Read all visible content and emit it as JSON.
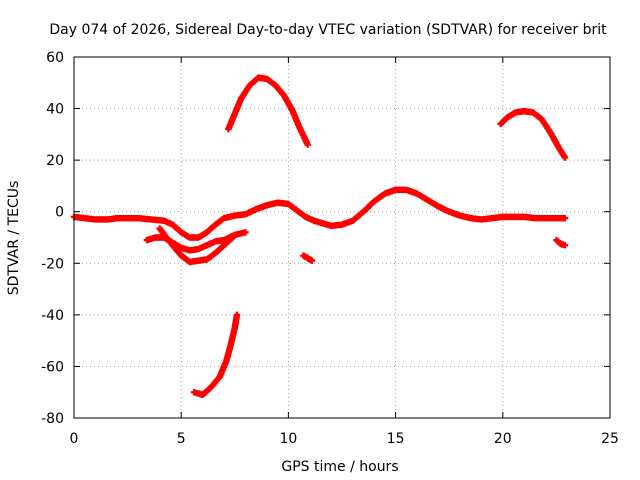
{
  "chart_data": {
    "type": "scatter",
    "title": "Day 074 of 2026, Sidereal Day-to-day VTEC variation (SDTVAR) for receiver brit",
    "xlabel": "GPS time / hours",
    "ylabel": "SDTVAR / TECUs",
    "xlim": [
      0,
      25
    ],
    "ylim": [
      -80,
      60
    ],
    "xticks": [
      0,
      5,
      10,
      15,
      20,
      25
    ],
    "yticks": [
      -80,
      -60,
      -40,
      -20,
      0,
      20,
      40,
      60
    ],
    "xtick_labels": [
      "0",
      "5",
      "10",
      "15",
      "20",
      "25"
    ],
    "ytick_labels": [
      "-80",
      "-60",
      "-40",
      "-20",
      "0",
      "20",
      "40",
      "60"
    ],
    "grid": true,
    "marker_color": "#ff0000",
    "series": [
      {
        "name": "arc-high-morning",
        "points": [
          [
            7.2,
            32
          ],
          [
            7.5,
            38
          ],
          [
            7.8,
            44
          ],
          [
            8.2,
            49
          ],
          [
            8.6,
            52
          ],
          [
            9.0,
            51.5
          ],
          [
            9.4,
            49
          ],
          [
            9.8,
            45
          ],
          [
            10.2,
            39
          ],
          [
            10.5,
            33
          ],
          [
            10.9,
            26
          ]
        ]
      },
      {
        "name": "arc-high-evening",
        "points": [
          [
            19.9,
            34
          ],
          [
            20.2,
            36.5
          ],
          [
            20.6,
            38.5
          ],
          [
            21.0,
            39
          ],
          [
            21.4,
            38.5
          ],
          [
            21.8,
            36
          ],
          [
            22.2,
            31
          ],
          [
            22.6,
            25
          ],
          [
            22.9,
            21
          ]
        ]
      },
      {
        "name": "arc-main-baseline",
        "points": [
          [
            0,
            -2
          ],
          [
            0.5,
            -2.5
          ],
          [
            1.0,
            -3
          ],
          [
            1.6,
            -3
          ],
          [
            2.0,
            -2.5
          ],
          [
            2.6,
            -2.5
          ],
          [
            3.0,
            -2.5
          ],
          [
            3.6,
            -3
          ],
          [
            4.2,
            -3.5
          ],
          [
            4.6,
            -5
          ],
          [
            5.0,
            -8
          ],
          [
            5.4,
            -10
          ],
          [
            5.8,
            -10
          ],
          [
            6.2,
            -8
          ],
          [
            6.6,
            -5
          ],
          [
            7.0,
            -2.5
          ],
          [
            7.5,
            -1.5
          ],
          [
            8.0,
            -1
          ],
          [
            8.5,
            1
          ],
          [
            9.0,
            2.5
          ],
          [
            9.5,
            3.5
          ],
          [
            10.0,
            3
          ],
          [
            10.4,
            0.5
          ],
          [
            10.8,
            -2
          ],
          [
            11.2,
            -3.5
          ],
          [
            11.6,
            -4.5
          ],
          [
            12.0,
            -5.5
          ],
          [
            12.5,
            -5
          ],
          [
            13.0,
            -3.5
          ],
          [
            13.5,
            0
          ],
          [
            14.0,
            4
          ],
          [
            14.5,
            7
          ],
          [
            15.0,
            8.5
          ],
          [
            15.5,
            8.5
          ],
          [
            16.0,
            7
          ],
          [
            16.5,
            4.5
          ],
          [
            17.0,
            2
          ],
          [
            17.5,
            0
          ],
          [
            18.0,
            -1.5
          ],
          [
            18.5,
            -2.5
          ],
          [
            19.0,
            -3
          ],
          [
            19.5,
            -2.5
          ],
          [
            20.0,
            -2
          ],
          [
            20.5,
            -2
          ],
          [
            21.0,
            -2
          ],
          [
            21.5,
            -2.5
          ],
          [
            22.0,
            -2.5
          ],
          [
            22.5,
            -2.5
          ],
          [
            22.9,
            -2.5
          ]
        ]
      },
      {
        "name": "arc-dip-upper",
        "points": [
          [
            3.4,
            -11
          ],
          [
            3.8,
            -10
          ],
          [
            4.2,
            -10
          ],
          [
            4.6,
            -12
          ],
          [
            5.0,
            -14
          ],
          [
            5.4,
            -15
          ],
          [
            5.8,
            -14.5
          ],
          [
            6.2,
            -13
          ],
          [
            6.6,
            -11.5
          ],
          [
            7.0,
            -11
          ],
          [
            7.5,
            -9
          ],
          [
            8.0,
            -8
          ]
        ]
      },
      {
        "name": "arc-dip-lower",
        "points": [
          [
            4.0,
            -6.5
          ],
          [
            4.3,
            -10
          ],
          [
            4.6,
            -13
          ],
          [
            5.0,
            -17
          ],
          [
            5.4,
            -19.5
          ],
          [
            5.8,
            -19
          ],
          [
            6.2,
            -18.5
          ],
          [
            6.6,
            -16
          ],
          [
            7.0,
            -13
          ],
          [
            7.4,
            -10
          ]
        ]
      },
      {
        "name": "arc-deep-low",
        "points": [
          [
            5.6,
            -70
          ],
          [
            6.0,
            -71
          ],
          [
            6.4,
            -68
          ],
          [
            6.8,
            -64
          ],
          [
            7.1,
            -58
          ],
          [
            7.3,
            -52
          ],
          [
            7.5,
            -45
          ],
          [
            7.6,
            -40
          ]
        ]
      },
      {
        "name": "segment-short-noon",
        "points": [
          [
            10.7,
            -17
          ],
          [
            10.9,
            -18
          ],
          [
            11.1,
            -19
          ]
        ]
      },
      {
        "name": "segment-short-evening",
        "points": [
          [
            22.5,
            -11
          ],
          [
            22.7,
            -12.5
          ],
          [
            22.9,
            -13
          ]
        ]
      }
    ]
  }
}
